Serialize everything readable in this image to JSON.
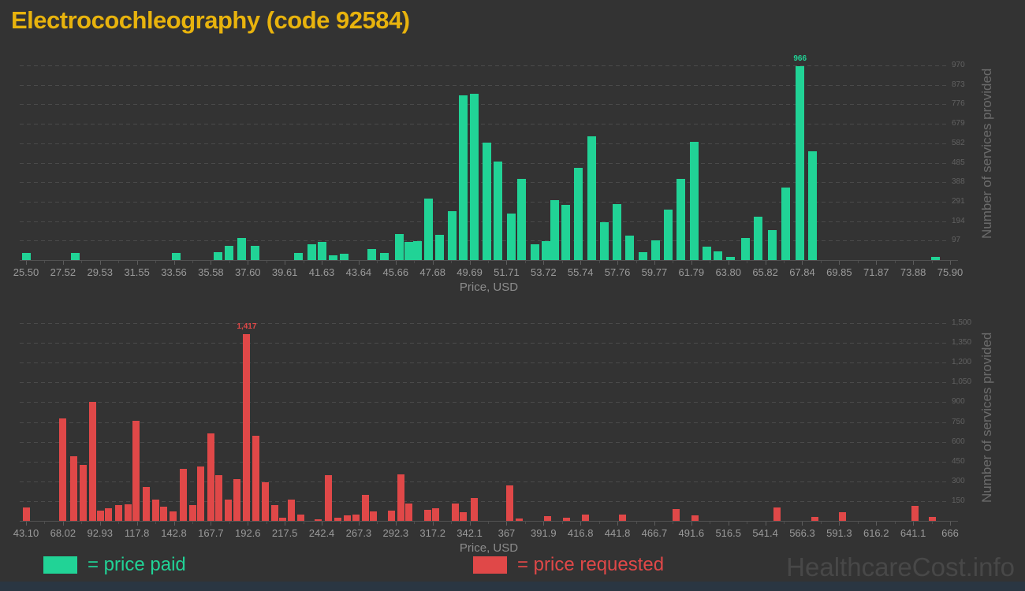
{
  "page": {
    "title": "Electrocochleography (code 92584)",
    "watermark": "HealthcareCost.info"
  },
  "colors": {
    "background": "#333333",
    "title": "#e8b30d",
    "paid": "#21d396",
    "requested": "#e04848",
    "watermark": "#484848",
    "footer_bar": "#2a3642"
  },
  "legend": {
    "paid": "= price paid",
    "requested": "= price requested"
  },
  "chart_data": [
    {
      "type": "bar",
      "series_name": "price paid",
      "color": "#21d396",
      "xlabel": "Price, USD",
      "ylabel": "Number of services provided",
      "x_tick_labels": [
        "25.50",
        "27.52",
        "29.53",
        "31.55",
        "33.56",
        "35.58",
        "37.60",
        "39.61",
        "41.63",
        "43.64",
        "45.66",
        "47.68",
        "49.69",
        "51.71",
        "53.72",
        "55.74",
        "57.76",
        "59.77",
        "61.79",
        "63.80",
        "65.82",
        "67.84",
        "69.85",
        "71.87",
        "73.88",
        "75.90"
      ],
      "y_tick_values": [
        97,
        194,
        291,
        388,
        485,
        582,
        679,
        776,
        873,
        970
      ],
      "y_tick_labels": [
        "97",
        "194",
        "291",
        "388",
        "485",
        "582",
        "679",
        "776",
        "873",
        "970"
      ],
      "ylim": [
        0,
        970
      ],
      "grid": true,
      "legend_position": "bottom",
      "bars": [
        [
          25.5,
          35
        ],
        [
          28.2,
          35
        ],
        [
          33.7,
          35
        ],
        [
          36.0,
          40
        ],
        [
          36.6,
          70
        ],
        [
          37.3,
          110
        ],
        [
          38.0,
          70
        ],
        [
          40.4,
          35
        ],
        [
          41.1,
          80
        ],
        [
          41.7,
          90
        ],
        [
          42.3,
          25
        ],
        [
          42.9,
          30
        ],
        [
          44.4,
          55
        ],
        [
          45.1,
          35
        ],
        [
          45.9,
          130
        ],
        [
          46.4,
          90
        ],
        [
          46.9,
          95
        ],
        [
          47.5,
          305
        ],
        [
          48.1,
          125
        ],
        [
          48.8,
          245
        ],
        [
          49.4,
          820
        ],
        [
          50.0,
          830
        ],
        [
          50.7,
          585
        ],
        [
          51.3,
          490
        ],
        [
          52.0,
          230
        ],
        [
          52.6,
          405
        ],
        [
          53.3,
          80
        ],
        [
          53.9,
          95
        ],
        [
          54.4,
          300
        ],
        [
          55.0,
          275
        ],
        [
          55.7,
          460
        ],
        [
          56.4,
          615
        ],
        [
          57.1,
          190
        ],
        [
          57.8,
          280
        ],
        [
          58.5,
          120
        ],
        [
          59.2,
          40
        ],
        [
          59.9,
          100
        ],
        [
          60.6,
          250
        ],
        [
          61.3,
          405
        ],
        [
          62.0,
          590
        ],
        [
          62.7,
          65
        ],
        [
          63.3,
          45
        ],
        [
          64.0,
          15
        ],
        [
          64.8,
          110
        ],
        [
          65.5,
          215
        ],
        [
          66.3,
          150
        ],
        [
          67.0,
          360
        ],
        [
          67.8,
          966
        ],
        [
          68.5,
          541
        ],
        [
          75.2,
          15
        ]
      ],
      "annotations": [
        {
          "x": 67.8,
          "v": 966,
          "label": "966"
        }
      ]
    },
    {
      "type": "bar",
      "series_name": "price requested",
      "color": "#e04848",
      "xlabel": "Price, USD",
      "ylabel": "Number of services provided",
      "x_tick_labels": [
        "43.10",
        "68.02",
        "92.93",
        "117.8",
        "142.8",
        "167.7",
        "192.6",
        "217.5",
        "242.4",
        "267.3",
        "292.3",
        "317.2",
        "342.1",
        "367",
        "391.9",
        "416.8",
        "441.8",
        "466.7",
        "491.6",
        "516.5",
        "541.4",
        "566.3",
        "591.3",
        "616.2",
        "641.1",
        "666"
      ],
      "y_tick_values": [
        150,
        300,
        450,
        600,
        750,
        900,
        1050,
        1200,
        1350,
        1500
      ],
      "y_tick_labels": [
        "150",
        "300",
        "450",
        "600",
        "750",
        "900",
        "1,050",
        "1,200",
        "1,350",
        "1,500"
      ],
      "ylim": [
        0,
        1500
      ],
      "grid": true,
      "legend_position": "bottom",
      "bars": [
        [
          43.1,
          100
        ],
        [
          68.0,
          775
        ],
        [
          75.0,
          490
        ],
        [
          81.9,
          425
        ],
        [
          87.8,
          905
        ],
        [
          93.1,
          75
        ],
        [
          98.9,
          95
        ],
        [
          105.3,
          120
        ],
        [
          111.7,
          127
        ],
        [
          117.5,
          760
        ],
        [
          124.4,
          255
        ],
        [
          130.3,
          160
        ],
        [
          136.1,
          107
        ],
        [
          142.5,
          70
        ],
        [
          148.9,
          397
        ],
        [
          155.3,
          120
        ],
        [
          161.1,
          415
        ],
        [
          167.5,
          666
        ],
        [
          173.3,
          345
        ],
        [
          179.2,
          163
        ],
        [
          185.5,
          315
        ],
        [
          191.9,
          1417
        ],
        [
          197.8,
          644
        ],
        [
          204.2,
          295
        ],
        [
          210.6,
          121
        ],
        [
          215.9,
          26
        ],
        [
          222.2,
          160
        ],
        [
          228.6,
          50
        ],
        [
          239.8,
          10
        ],
        [
          247.2,
          347
        ],
        [
          253.1,
          26
        ],
        [
          259.5,
          40
        ],
        [
          265.8,
          50
        ],
        [
          271.7,
          195
        ],
        [
          277.5,
          70
        ],
        [
          289.7,
          80
        ],
        [
          295.6,
          351
        ],
        [
          301.4,
          130
        ],
        [
          313.7,
          84
        ],
        [
          319.5,
          94
        ],
        [
          332.3,
          130
        ],
        [
          338.1,
          66
        ],
        [
          345.1,
          175
        ],
        [
          369.0,
          271
        ],
        [
          375.4,
          16
        ],
        [
          394.5,
          36
        ],
        [
          407.5,
          24
        ],
        [
          420.5,
          50
        ],
        [
          445.0,
          50
        ],
        [
          481.5,
          90
        ],
        [
          494.3,
          44
        ],
        [
          549.2,
          100
        ],
        [
          574.7,
          27
        ],
        [
          593.3,
          63
        ],
        [
          642.2,
          111
        ],
        [
          654.4,
          32
        ]
      ],
      "annotations": [
        {
          "x": 191.9,
          "v": 1417,
          "label": "1,417"
        }
      ]
    }
  ]
}
